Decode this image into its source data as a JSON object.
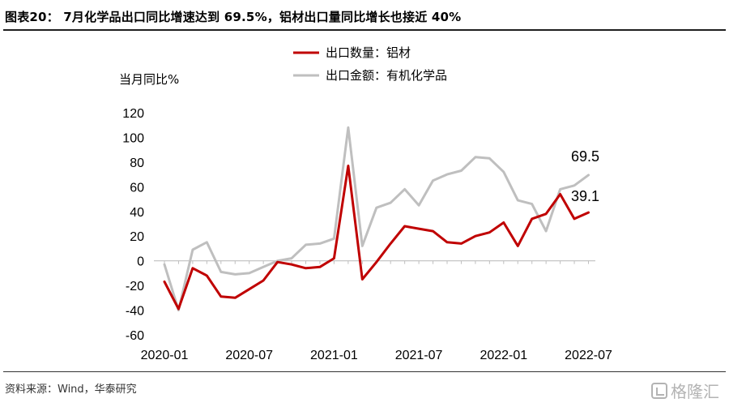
{
  "header": {
    "title": "图表20：  7月化学品出口同比增速达到 69.5%，铝材出口量同比增长也接近 40%"
  },
  "footer": {
    "source": "资料来源：Wind，华泰研究",
    "watermark": "格隆汇"
  },
  "colors": {
    "aluminum": "#c00000",
    "chemicals": "#bfbfbf"
  },
  "chart_data": {
    "type": "line",
    "unit_label": "当月同比%",
    "ylim": [
      -60,
      120
    ],
    "yticks": [
      -60,
      -40,
      -20,
      0,
      20,
      40,
      60,
      80,
      100,
      120
    ],
    "x_tick_labels": [
      "2020-01",
      "2020-07",
      "2021-01",
      "2021-07",
      "2022-01",
      "2022-07"
    ],
    "x": [
      "2020-01",
      "2020-02",
      "2020-03",
      "2020-04",
      "2020-05",
      "2020-06",
      "2020-07",
      "2020-08",
      "2020-09",
      "2020-10",
      "2020-11",
      "2020-12",
      "2021-01",
      "2021-02",
      "2021-03",
      "2021-04",
      "2021-05",
      "2021-06",
      "2021-07",
      "2021-08",
      "2021-09",
      "2021-10",
      "2021-11",
      "2021-12",
      "2022-01",
      "2022-02",
      "2022-03",
      "2022-04",
      "2022-05",
      "2022-06",
      "2022-07"
    ],
    "legend_position": "top",
    "grid": false,
    "series": [
      {
        "name": "出口数量：铝材",
        "color": "#c00000",
        "values": [
          -17,
          -39,
          -6,
          -12,
          -29,
          -30,
          -23,
          -16,
          -1,
          -3,
          -6,
          -5,
          2,
          77,
          -15,
          -1,
          14,
          28,
          26,
          24,
          15,
          14,
          20,
          23,
          31,
          12,
          34,
          38,
          54,
          34,
          39.1
        ]
      },
      {
        "name": "出口金额：有机化学品",
        "color": "#bfbfbf",
        "values": [
          -3,
          -40,
          9,
          15,
          -9,
          -11,
          -10,
          -5,
          0,
          2,
          13,
          14,
          18,
          108,
          12,
          43,
          47,
          58,
          45,
          65,
          70,
          73,
          84,
          83,
          72,
          49,
          46,
          24,
          58,
          61,
          69.5
        ]
      }
    ],
    "data_labels": [
      {
        "series": "出口金额：有机化学品",
        "x": "2022-07",
        "text": "69.5"
      },
      {
        "series": "出口数量：铝材",
        "x": "2022-07",
        "text": "39.1"
      }
    ]
  }
}
